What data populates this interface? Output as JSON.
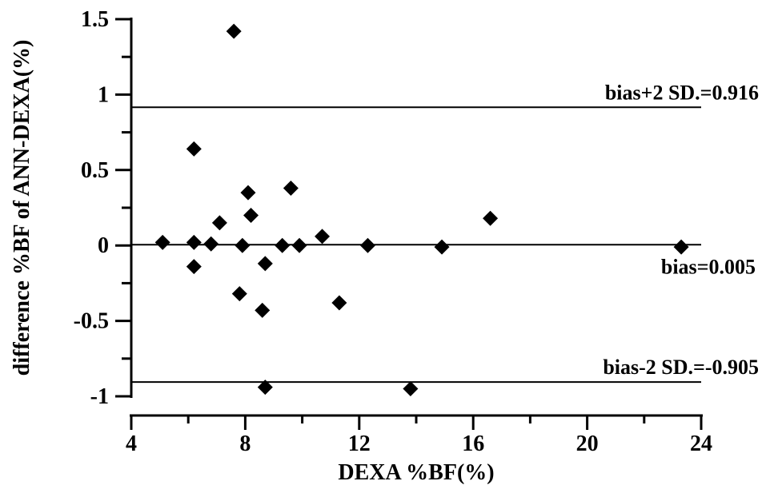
{
  "chart_data": {
    "type": "scatter",
    "xlabel": "DEXA %BF(%)",
    "ylabel": "difference %BF of ANN-DEXA(%)",
    "xlim": [
      4,
      24
    ],
    "ylim": [
      -1,
      1.5
    ],
    "x_ticks": [
      4,
      8,
      12,
      16,
      20,
      24
    ],
    "x_tick_labels": [
      "4",
      "8",
      "12",
      "16",
      "20",
      "24"
    ],
    "y_ticks": [
      -1,
      -0.5,
      0,
      0.5,
      1,
      1.5
    ],
    "y_tick_labels": [
      "-1",
      "-0.5",
      "0",
      "0.5",
      "1",
      "1.5"
    ],
    "grid": false,
    "marker": "diamond",
    "marker_color": "#000000",
    "series": [
      {
        "points": [
          [
            5.1,
            0.02
          ],
          [
            6.2,
            0.02
          ],
          [
            6.8,
            0.01
          ],
          [
            7.1,
            0.15
          ],
          [
            7.6,
            1.42
          ],
          [
            6.2,
            0.64
          ],
          [
            6.2,
            -0.14
          ],
          [
            7.8,
            -0.32
          ],
          [
            7.9,
            0.0
          ],
          [
            8.1,
            0.35
          ],
          [
            8.2,
            0.2
          ],
          [
            8.6,
            -0.43
          ],
          [
            8.7,
            -0.12
          ],
          [
            8.7,
            -0.94
          ],
          [
            9.3,
            0.0
          ],
          [
            9.6,
            0.38
          ],
          [
            9.9,
            0.0
          ],
          [
            10.7,
            0.06
          ],
          [
            11.3,
            -0.38
          ],
          [
            12.3,
            0.0
          ],
          [
            13.8,
            -0.95
          ],
          [
            14.9,
            -0.01
          ],
          [
            16.6,
            0.18
          ],
          [
            23.3,
            -0.01
          ]
        ]
      }
    ],
    "reference_lines": [
      {
        "y": 0.916,
        "label": "bias+2 SD.=0.916"
      },
      {
        "y": 0.005,
        "label": "bias=0.005"
      },
      {
        "y": -0.905,
        "label": "bias-2 SD.=-0.905"
      }
    ]
  }
}
